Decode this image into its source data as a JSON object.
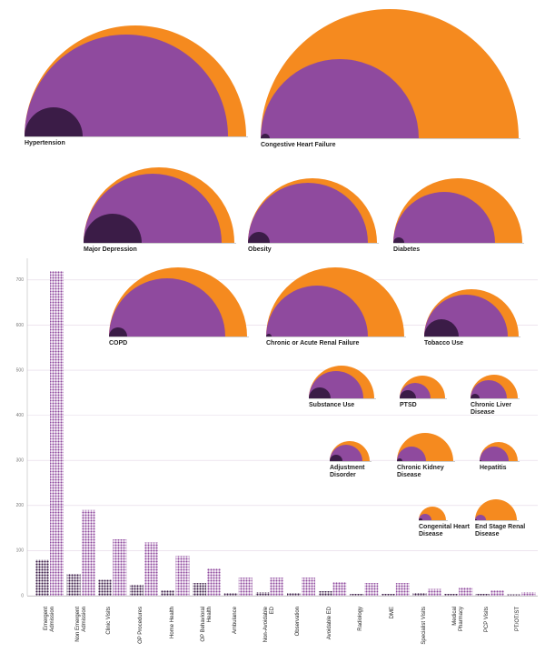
{
  "chart_data": [
    {
      "type": "nested-semicircle",
      "categories": [
        "Hypertension",
        "Congestive Heart Failure",
        "Major Depression",
        "Obesity",
        "Diabetes",
        "COPD",
        "Chronic or Acute Renal Failure",
        "Tobacco Use",
        "Substance Use",
        "PTSD",
        "Chronic Liver Disease",
        "Adjustment Disorder",
        "Chronic Kidney Disease",
        "Hepatitis",
        "Congenital Heart Disease",
        "End Stage Renal Disease"
      ],
      "series": [
        {
          "color": "#f58a1f",
          "values": [
            122,
            142,
            83,
            71,
            71,
            76,
            76,
            52,
            36,
            25,
            26,
            22,
            31,
            21,
            15,
            23
          ]
        },
        {
          "color": "#8f4a9e",
          "values": [
            112,
            87,
            76,
            66,
            56,
            64,
            56,
            46,
            30,
            17,
            20,
            18,
            16,
            16,
            7,
            6
          ]
        },
        {
          "color": "#3b1c47",
          "values": [
            32,
            5,
            32,
            12,
            6,
            10,
            3,
            19,
            12,
            9,
            5,
            7,
            3,
            1,
            2,
            1
          ]
        }
      ]
    },
    {
      "type": "bar",
      "categories": [
        "Emergent Admission",
        "Non Emergent Admission",
        "Clinic Visits",
        "OP Procedures",
        "Home Health",
        "OP Behavioral Health",
        "Ambulance",
        "Non-Avoidable ED",
        "Observation",
        "Avoidable ED",
        "Radiology",
        "DME",
        "Specialist Visits",
        "Medical Pharmacy",
        "PCP Visits",
        "PT/OT/ST"
      ],
      "series": [
        {
          "color": "#3b1c47",
          "values": [
            80,
            48,
            35,
            25,
            12,
            28,
            5,
            8,
            5,
            10,
            4,
            4,
            6,
            4,
            4,
            3
          ]
        },
        {
          "color": "#8f4a9e",
          "values": [
            720,
            190,
            125,
            118,
            88,
            60,
            40,
            40,
            40,
            30,
            28,
            28,
            15,
            18,
            12,
            8
          ]
        }
      ],
      "ylim": [
        0,
        740
      ],
      "yticks": [
        0,
        100,
        200,
        300,
        400,
        500,
        600,
        700
      ],
      "grid": true
    }
  ]
}
